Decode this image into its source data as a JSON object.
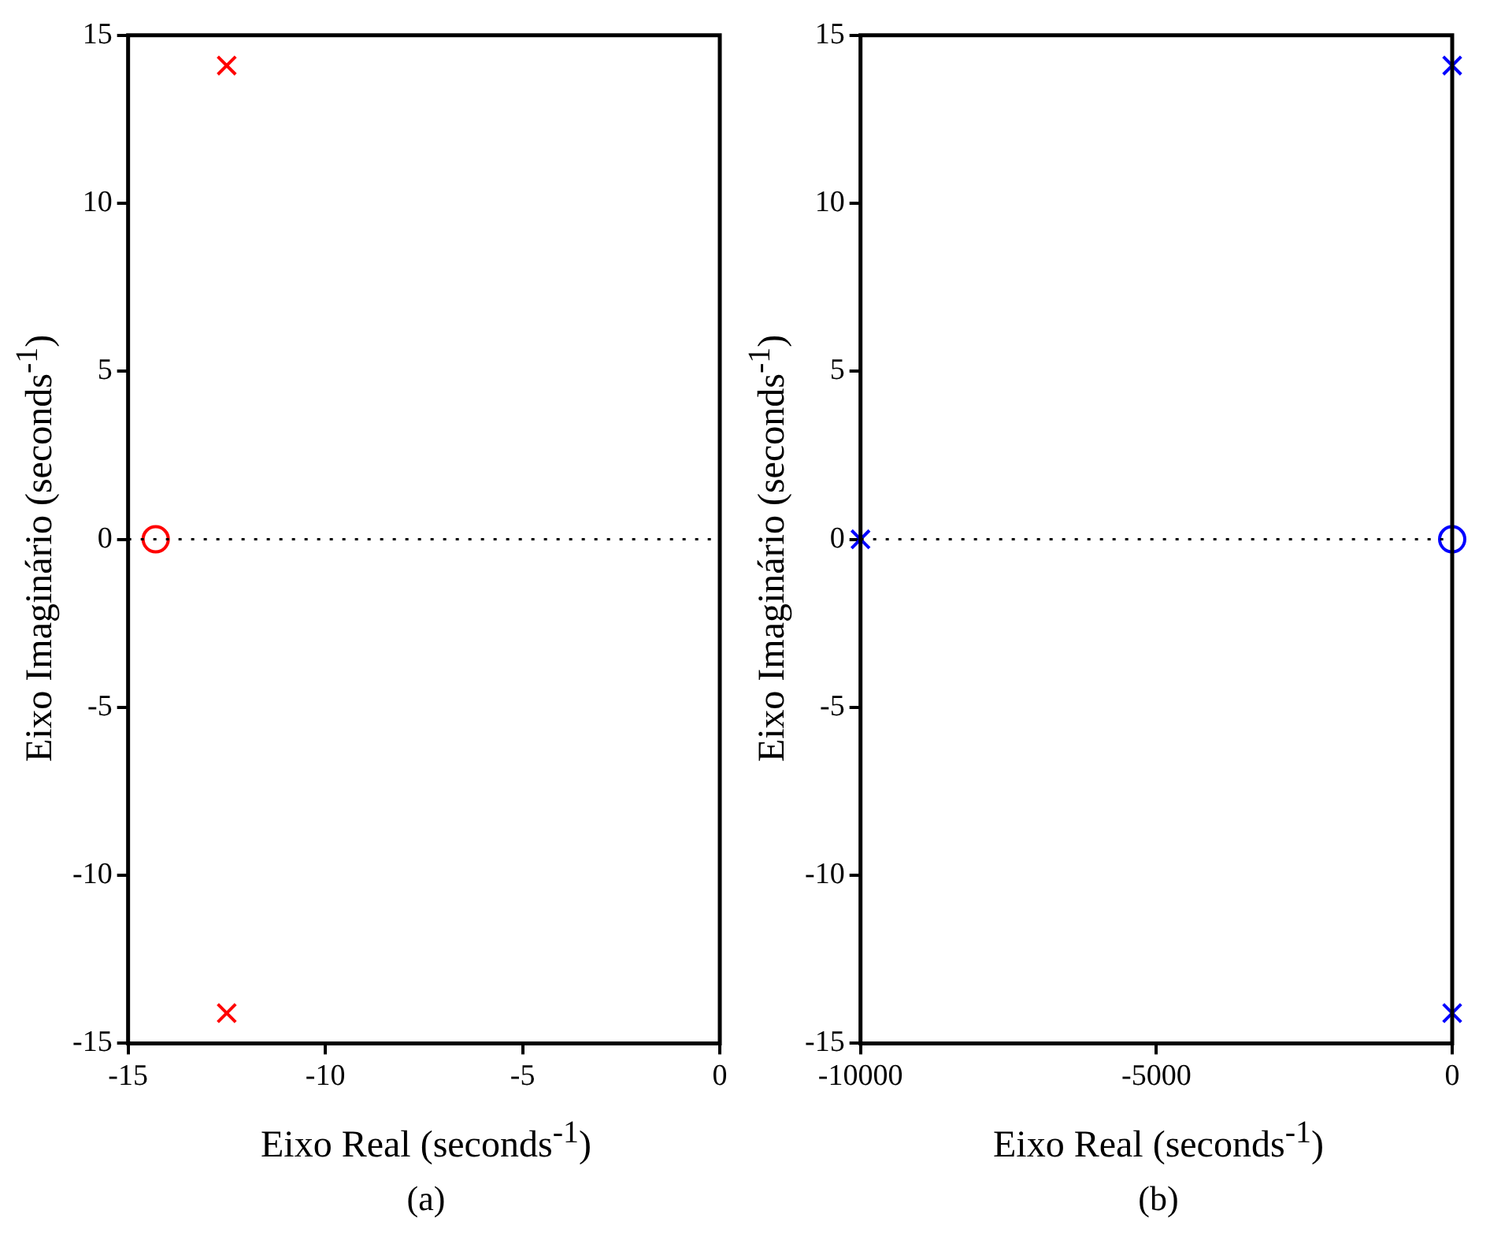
{
  "chart_data": [
    {
      "type": "scatter",
      "xlabel": "Eixo Real (seconds$^{-1}$)",
      "ylabel": "Eixo Imaginário (seconds$^{-1}$)",
      "annotations": [
        "(a)"
      ],
      "legend": false,
      "xlim": [
        -15,
        0
      ],
      "xticks": [
        -15,
        -10,
        -5,
        0
      ],
      "ylim": [
        -15,
        15
      ],
      "yticks": [
        -15,
        -10,
        -5,
        0,
        5,
        10,
        15
      ],
      "series": [
        {
          "color": "#ff0000",
          "marker": "cross",
          "x": [
            -12.5,
            -12.5
          ],
          "values": [
            14.1,
            -14.1
          ]
        },
        {
          "color": "#ff0000",
          "marker": "circle",
          "x": [
            -14.3
          ],
          "values": [
            0
          ]
        }
      ],
      "ref_lines": [
        {
          "axis": "y",
          "value": 0,
          "color": "#000000",
          "line_style": "dotted"
        }
      ]
    },
    {
      "type": "scatter",
      "xlabel": "Eixo Real (seconds$^{-1}$)",
      "ylabel": "Eixo Imaginário (seconds$^{-1}$)",
      "annotations": [
        "(b)"
      ],
      "legend": false,
      "xlim": [
        -10000,
        0
      ],
      "xticks": [
        -10000,
        -5000,
        0
      ],
      "ylim": [
        -15,
        15
      ],
      "yticks": [
        -15,
        -10,
        -5,
        0,
        5,
        10,
        15
      ],
      "series": [
        {
          "color": "#0000ff",
          "marker": "cross",
          "x": [
            -10000,
            0,
            0
          ],
          "values": [
            0,
            14.1,
            -14.1
          ]
        },
        {
          "color": "#0000ff",
          "marker": "circle",
          "x": [
            0
          ],
          "values": [
            0
          ]
        }
      ],
      "ref_lines": [
        {
          "axis": "y",
          "value": 0,
          "color": "#000000",
          "line_style": "dotted"
        }
      ]
    }
  ]
}
